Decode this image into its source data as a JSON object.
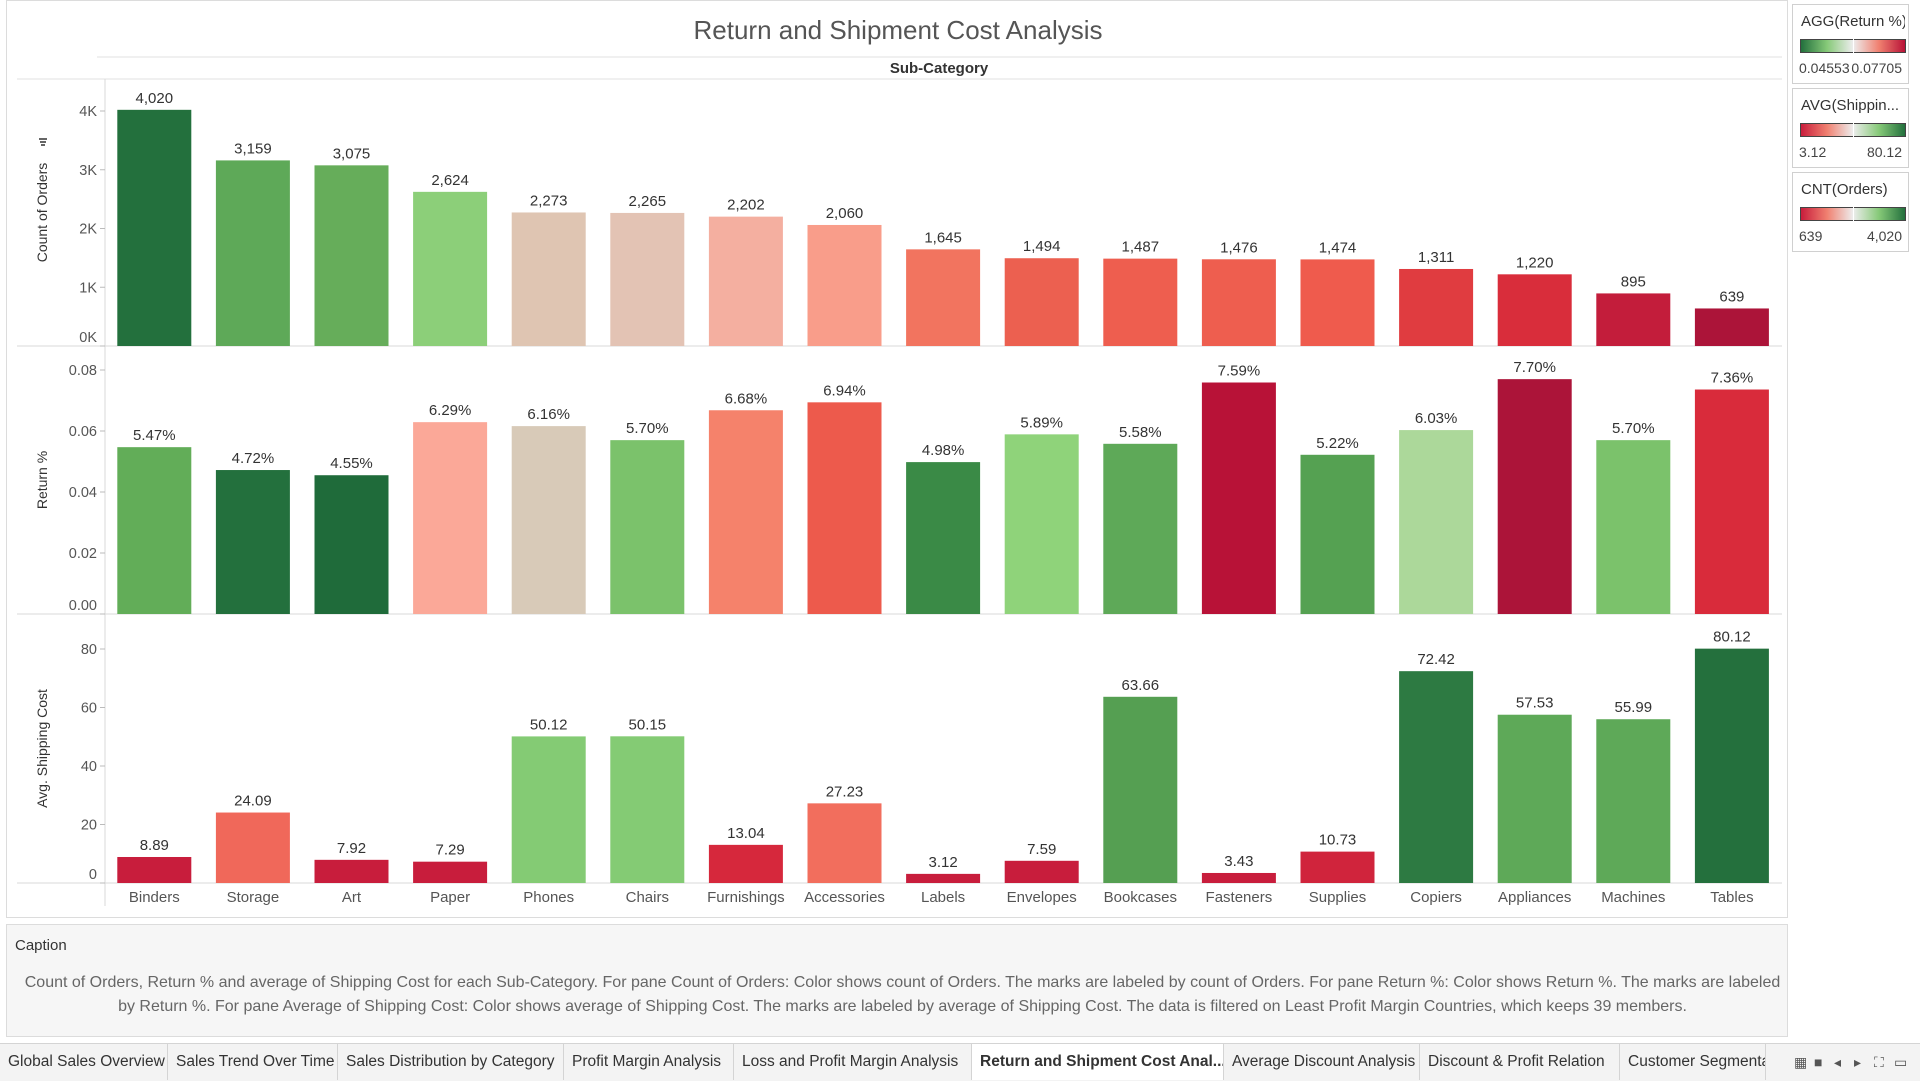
{
  "chart_data": {
    "type": "bar",
    "title": "Return and Shipment Cost Analysis",
    "column_header": "Sub-Category",
    "categories": [
      "Binders",
      "Storage",
      "Art",
      "Paper",
      "Phones",
      "Chairs",
      "Furnishings",
      "Accessories",
      "Labels",
      "Envelopes",
      "Bookcases",
      "Fasteners",
      "Supplies",
      "Copiers",
      "Appliances",
      "Machines",
      "Tables"
    ],
    "panes": [
      {
        "name": "Count of Orders",
        "ylabel": "Count of Orders",
        "ylim": [
          0,
          4400
        ],
        "ticks": [
          0,
          1000,
          2000,
          3000,
          4000
        ],
        "tick_labels": [
          "0K",
          "1K",
          "2K",
          "3K",
          "4K"
        ],
        "values": [
          4020,
          3159,
          3075,
          2624,
          2273,
          2265,
          2202,
          2060,
          1645,
          1494,
          1487,
          1476,
          1474,
          1311,
          1220,
          895,
          639
        ],
        "labels": [
          "4,020",
          "3,159",
          "3,075",
          "2,624",
          "2,273",
          "2,265",
          "2,202",
          "2,060",
          "1,645",
          "1,494",
          "1,487",
          "1,476",
          "1,474",
          "1,311",
          "1,220",
          "895",
          "639"
        ],
        "colors": [
          "#23703d",
          "#5ea958",
          "#66ad5a",
          "#8ccf79",
          "#dfc5b2",
          "#e3c3b4",
          "#f4afa0",
          "#f99d8a",
          "#f2745f",
          "#ec6050",
          "#ee5e4f",
          "#ee5e4f",
          "#ef5b4d",
          "#e03c40",
          "#d92d3b",
          "#c31d3b",
          "#ac1439"
        ]
      },
      {
        "name": "Return %",
        "ylabel": "Return %",
        "ylim": [
          0,
          0.08
        ],
        "ticks": [
          0,
          0.02,
          0.04,
          0.06,
          0.08
        ],
        "tick_labels": [
          "0.00",
          "0.02",
          "0.04",
          "0.06",
          "0.08"
        ],
        "values": [
          0.0547,
          0.0472,
          0.0455,
          0.0629,
          0.0616,
          0.057,
          0.0668,
          0.0694,
          0.0498,
          0.0589,
          0.0558,
          0.0759,
          0.0522,
          0.0603,
          0.077,
          0.057,
          0.0736
        ],
        "labels": [
          "5.47%",
          "4.72%",
          "4.55%",
          "6.29%",
          "6.16%",
          "5.70%",
          "6.68%",
          "6.94%",
          "4.98%",
          "5.89%",
          "5.58%",
          "7.59%",
          "5.22%",
          "6.03%",
          "7.70%",
          "5.70%",
          "7.36%"
        ],
        "colors": [
          "#62ad58",
          "#23703d",
          "#1f6b3a",
          "#fba898",
          "#d8cab8",
          "#7bc26b",
          "#f5826b",
          "#ed5a4c",
          "#3a8a46",
          "#8fd37a",
          "#5ea958",
          "#b81237",
          "#55a152",
          "#acd89a",
          "#ac1439",
          "#7bc26b",
          "#d92b3b"
        ]
      },
      {
        "name": "Avg. Shipping Cost",
        "ylabel": "Avg. Shipping Cost",
        "ylim": [
          0,
          85
        ],
        "ticks": [
          0,
          20,
          40,
          60,
          80
        ],
        "tick_labels": [
          "0",
          "20",
          "40",
          "60",
          "80"
        ],
        "values": [
          8.89,
          24.09,
          7.92,
          7.29,
          50.12,
          50.15,
          13.04,
          27.23,
          3.12,
          7.59,
          63.66,
          3.43,
          10.73,
          72.42,
          57.53,
          55.99,
          80.12
        ],
        "labels": [
          "8.89",
          "24.09",
          "7.92",
          "7.29",
          "50.12",
          "50.15",
          "13.04",
          "27.23",
          "3.12",
          "7.59",
          "63.66",
          "3.43",
          "10.73",
          "72.42",
          "57.53",
          "55.99",
          "80.12"
        ],
        "colors": [
          "#c81d3c",
          "#f0685a",
          "#c81d3c",
          "#c81d3c",
          "#84cb74",
          "#84cb74",
          "#d6283c",
          "#f26e5d",
          "#c81d3c",
          "#c81d3c",
          "#559f52",
          "#c81d3c",
          "#d0243c",
          "#2d7a42",
          "#5ea958",
          "#5ea958",
          "#24703d"
        ]
      }
    ],
    "grid": false,
    "legend_position": "right"
  },
  "legends": [
    {
      "title": "AGG(Return %)",
      "min": "0.04553",
      "max": "0.07705",
      "gradient": [
        "#23703d",
        "#86c978",
        "#ededed",
        "#f08070",
        "#b81237"
      ]
    },
    {
      "title": "AVG(Shippin...",
      "min": "3.12",
      "max": "80.12",
      "gradient": [
        "#c81d3c",
        "#f08070",
        "#ededed",
        "#86c978",
        "#23703d"
      ]
    },
    {
      "title": "CNT(Orders)",
      "min": "639",
      "max": "4,020",
      "gradient": [
        "#c81d3c",
        "#f08070",
        "#ededed",
        "#86c978",
        "#23703d"
      ]
    }
  ],
  "caption": {
    "title": "Caption",
    "text": "Count of Orders, Return % and average of Shipping Cost for each Sub-Category.  For pane Count of Orders:  Color shows count of Orders.  The marks are labeled by count of Orders.  For pane Return %:  Color shows Return %. The marks are labeled by Return %.  For pane Average of Shipping Cost:  Color shows average of Shipping Cost.  The marks are labeled by average of Shipping Cost. The data is filtered on Least Profit Margin Countries, which keeps 39 members."
  },
  "tabs": [
    {
      "label": "Global Sales Overview",
      "active": false
    },
    {
      "label": "Sales Trend Over Time",
      "active": false
    },
    {
      "label": "Sales Distribution by Category",
      "active": false
    },
    {
      "label": "Profit Margin Analysis",
      "active": false
    },
    {
      "label": "Loss and Profit Margin Analysis",
      "active": false
    },
    {
      "label": "Return and Shipment Cost Anal...",
      "active": true
    },
    {
      "label": "Average Discount Analysis",
      "active": false
    },
    {
      "label": "Discount & Profit Relation",
      "active": false
    },
    {
      "label": "Customer Segmenta",
      "active": false
    }
  ],
  "tab_controls": [
    "▦",
    "■",
    "◂",
    "▸",
    "⛶",
    "▭"
  ]
}
